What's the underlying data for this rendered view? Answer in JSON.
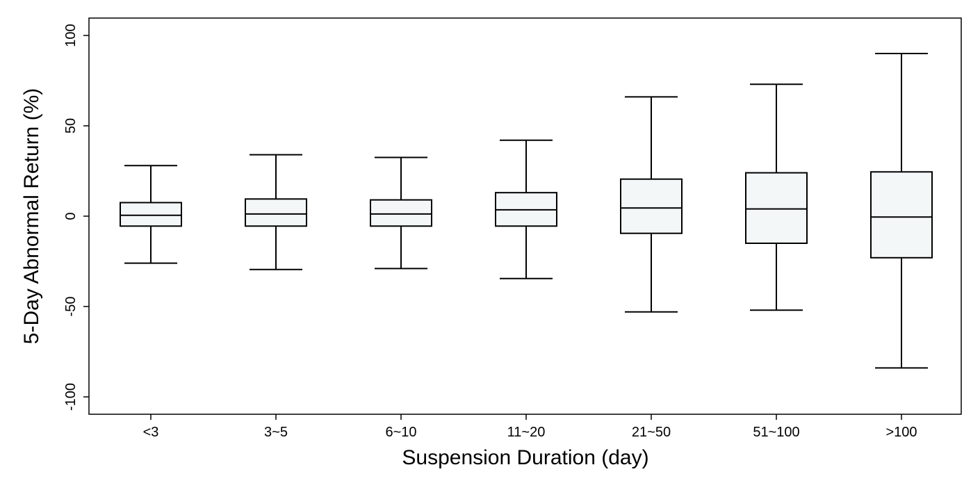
{
  "chart_data": {
    "type": "box",
    "title": "",
    "xlabel": "Suspension Duration (day)",
    "ylabel": "5-Day Abnormal Return (%)",
    "ylim": [
      -110,
      110
    ],
    "yticks": [
      -100,
      -50,
      0,
      50,
      100
    ],
    "ytick_labels": [
      "-100",
      "-50",
      "0",
      "50",
      "100"
    ],
    "grid": false,
    "legend": "none",
    "box_fill": "#f4f7f8",
    "line_color": "#000000",
    "categories": [
      "<3",
      "3~5",
      "6~10",
      "11~20",
      "21~50",
      "51~100",
      ">100"
    ],
    "boxes": [
      {
        "category": "<3",
        "whisker_low": -26,
        "q1": -5.5,
        "median": 0.5,
        "q3": 7.5,
        "whisker_high": 28
      },
      {
        "category": "3~5",
        "whisker_low": -29.5,
        "q1": -5.5,
        "median": 1.2,
        "q3": 9.5,
        "whisker_high": 34
      },
      {
        "category": "6~10",
        "whisker_low": -29,
        "q1": -5.5,
        "median": 1.2,
        "q3": 9,
        "whisker_high": 32.5
      },
      {
        "category": "11~20",
        "whisker_low": -34.5,
        "q1": -5.5,
        "median": 3.5,
        "q3": 13,
        "whisker_high": 42
      },
      {
        "category": "21~50",
        "whisker_low": -53,
        "q1": -9.5,
        "median": 4.5,
        "q3": 20.5,
        "whisker_high": 66
      },
      {
        "category": "51~100",
        "whisker_low": -52,
        "q1": -15,
        "median": 4,
        "q3": 24,
        "whisker_high": 73
      },
      {
        "category": ">100",
        "whisker_low": -84,
        "q1": -23,
        "median": -0.5,
        "q3": 24.5,
        "whisker_high": 90
      }
    ]
  }
}
